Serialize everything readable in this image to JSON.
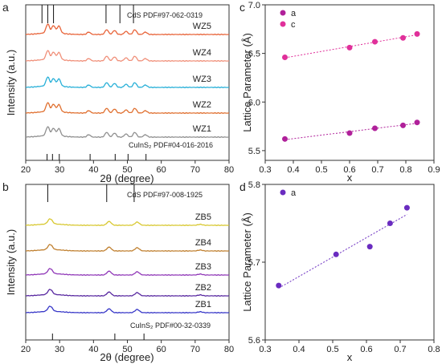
{
  "chart_data": [
    {
      "id": "a",
      "type": "line",
      "panel_label": "a",
      "xlabel": "2θ (degree)",
      "ylabel": "Intensity (a.u.)",
      "xlim": [
        20,
        80
      ],
      "xticks": [
        "20",
        "30",
        "40",
        "50",
        "60",
        "70",
        "80"
      ],
      "reference_top": {
        "label": "CdS PDF#97-062-0319",
        "positions": [
          24.8,
          26.5,
          28.2,
          43.7,
          47.8,
          51.8
        ]
      },
      "reference_bottom": {
        "label": "CuInS₂ PDF#04-016-2016",
        "positions": [
          26.3,
          27.9,
          29.9,
          39.0,
          46.4,
          50.2,
          55.5
        ]
      },
      "series": [
        {
          "name": "WZ5",
          "color": "#e8643a"
        },
        {
          "name": "WZ4",
          "color": "#f0907a"
        },
        {
          "name": "WZ3",
          "color": "#28b0d8"
        },
        {
          "name": "WZ2",
          "color": "#e07030"
        },
        {
          "name": "WZ1",
          "color": "#909090"
        }
      ]
    },
    {
      "id": "b",
      "type": "line",
      "panel_label": "b",
      "xlabel": "2θ (degree)",
      "ylabel": "Intensity (a.u.)",
      "xlim": [
        20,
        80
      ],
      "xticks": [
        "20",
        "30",
        "40",
        "50",
        "60",
        "70",
        "80"
      ],
      "reference_top": {
        "label": "CdS PDF#97-008-1925",
        "positions": [
          26.5,
          43.9,
          52.0
        ]
      },
      "reference_bottom": {
        "label": "CuInS₂ PDF#00-32-0339",
        "positions": [
          27.9,
          46.3,
          54.9
        ]
      },
      "series": [
        {
          "name": "ZB5",
          "color": "#d8c830"
        },
        {
          "name": "ZB4",
          "color": "#c08030"
        },
        {
          "name": "ZB3",
          "color": "#9038b8"
        },
        {
          "name": "ZB2",
          "color": "#5828a0"
        },
        {
          "name": "ZB1",
          "color": "#3838c8"
        }
      ]
    },
    {
      "id": "c",
      "type": "scatter",
      "panel_label": "c",
      "xlabel": "x",
      "ylabel": "Lattice Parameter (Å)",
      "xlim": [
        0.3,
        0.9
      ],
      "ylim": [
        5.4,
        7.0
      ],
      "xticks": [
        "0.3",
        "0.4",
        "0.5",
        "0.6",
        "0.7",
        "0.8",
        "0.9"
      ],
      "yticks": [
        "5.5",
        "6.0",
        "6.5",
        "7.0"
      ],
      "legend": "top-left",
      "series": [
        {
          "name": "a",
          "color": "#b0209a",
          "x": [
            0.37,
            0.6,
            0.69,
            0.79,
            0.84
          ],
          "y": [
            5.62,
            5.68,
            5.73,
            5.76,
            5.79
          ]
        },
        {
          "name": "c",
          "color": "#e0309a",
          "x": [
            0.37,
            0.6,
            0.69,
            0.79,
            0.84
          ],
          "y": [
            6.46,
            6.56,
            6.62,
            6.66,
            6.7
          ]
        }
      ]
    },
    {
      "id": "d",
      "type": "scatter",
      "panel_label": "d",
      "xlabel": "x",
      "ylabel": "Lattice Parameter (Å)",
      "xlim": [
        0.3,
        0.8
      ],
      "ylim": [
        5.6,
        5.8
      ],
      "xticks": [
        "0.3",
        "0.4",
        "0.5",
        "0.6",
        "0.7",
        "0.8"
      ],
      "yticks": [
        "5.6",
        "5.7",
        "5.8"
      ],
      "legend": "top-left",
      "series": [
        {
          "name": "a",
          "color": "#6a2cc0",
          "x": [
            0.34,
            0.51,
            0.61,
            0.67,
            0.72
          ],
          "y": [
            5.67,
            5.71,
            5.72,
            5.75,
            5.77
          ]
        }
      ]
    }
  ]
}
